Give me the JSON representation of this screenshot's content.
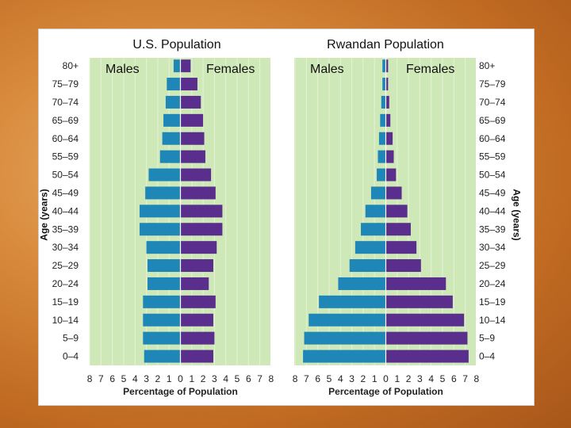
{
  "chart_data": [
    {
      "type": "bar",
      "title": "U.S. Population",
      "left_label": "Males",
      "right_label": "Females",
      "xlabel": "Percentage of Population",
      "ylabel": "Age (years)",
      "xlim": [
        -8,
        8
      ],
      "x_ticks": [
        "8",
        "7",
        "6",
        "5",
        "4",
        "3",
        "2",
        "1",
        "0",
        "1",
        "2",
        "3",
        "4",
        "5",
        "6",
        "7",
        "8"
      ],
      "categories": [
        "0–4",
        "5–9",
        "10–14",
        "15–19",
        "20–24",
        "25–29",
        "30–34",
        "35–39",
        "40–44",
        "45–49",
        "50–54",
        "55–59",
        "60–64",
        "65–69",
        "70–74",
        "75–79",
        "80+"
      ],
      "series": [
        {
          "name": "Males",
          "values": [
            3.2,
            3.3,
            3.3,
            3.3,
            2.9,
            2.9,
            3.0,
            3.6,
            3.6,
            3.1,
            2.8,
            1.8,
            1.6,
            1.5,
            1.3,
            1.2,
            0.6
          ]
        },
        {
          "name": "Females",
          "values": [
            2.9,
            3.0,
            2.9,
            3.1,
            2.5,
            2.9,
            3.2,
            3.7,
            3.7,
            3.1,
            2.7,
            2.2,
            2.1,
            2.0,
            1.8,
            1.5,
            0.9
          ]
        }
      ],
      "colors": {
        "males": "#1f86b8",
        "females": "#5a2e8c",
        "plot_bg": "#cfe8b8"
      }
    },
    {
      "type": "bar",
      "title": "Rwandan Population",
      "left_label": "Males",
      "right_label": "Females",
      "xlabel": "Percentage of Population",
      "ylabel": "Age (years)",
      "xlim": [
        -8,
        8
      ],
      "x_ticks": [
        "8",
        "7",
        "6",
        "5",
        "4",
        "3",
        "2",
        "1",
        "0",
        "1",
        "2",
        "3",
        "4",
        "5",
        "6",
        "7",
        "8"
      ],
      "categories": [
        "0–4",
        "5–9",
        "10–14",
        "15–19",
        "20–24",
        "25–29",
        "30–34",
        "35–39",
        "40–44",
        "45–49",
        "50–54",
        "55–59",
        "60–64",
        "65–69",
        "70–74",
        "75–79",
        "80+"
      ],
      "series": [
        {
          "name": "Males",
          "values": [
            7.3,
            7.2,
            6.8,
            5.9,
            4.2,
            3.2,
            2.7,
            2.2,
            1.8,
            1.3,
            0.8,
            0.7,
            0.6,
            0.5,
            0.4,
            0.3,
            0.3
          ]
        },
        {
          "name": "Females",
          "values": [
            7.3,
            7.2,
            6.9,
            5.9,
            5.3,
            3.1,
            2.7,
            2.2,
            1.9,
            1.4,
            0.9,
            0.7,
            0.6,
            0.4,
            0.3,
            0.2,
            0.2
          ]
        }
      ],
      "colors": {
        "males": "#1f86b8",
        "females": "#5a2e8c",
        "plot_bg": "#cfe8b8"
      }
    }
  ]
}
